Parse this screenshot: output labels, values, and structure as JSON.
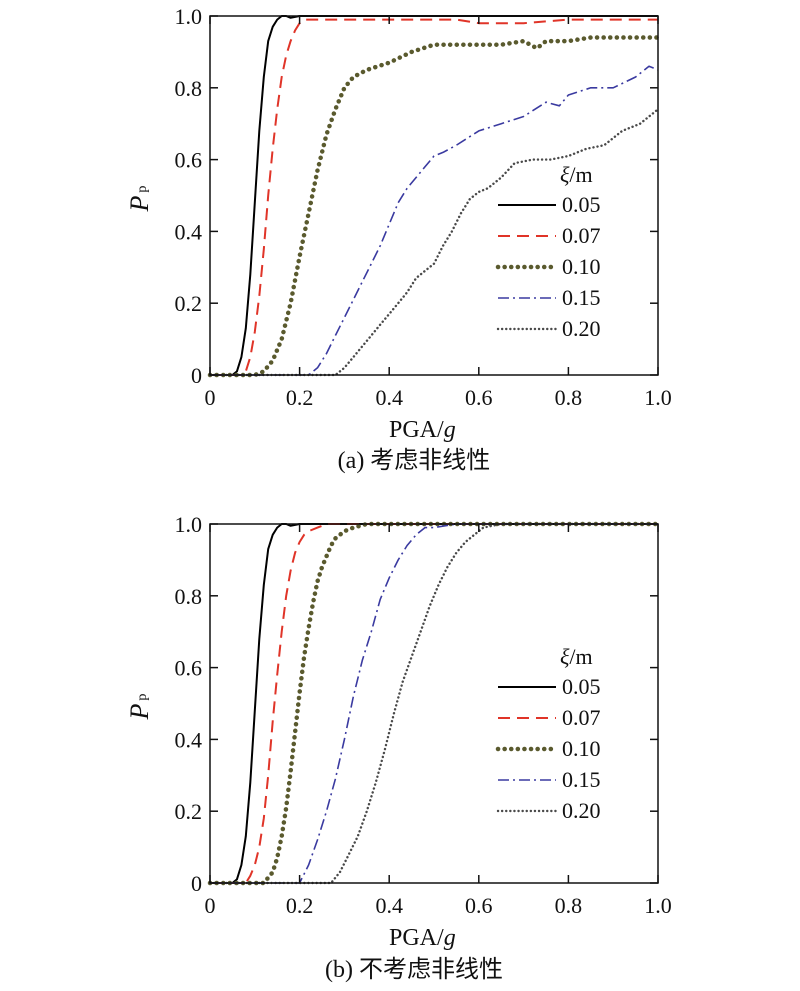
{
  "chart_data": [
    {
      "type": "line",
      "caption": "(a) 考虑非线性",
      "xlabel": "PGA/g",
      "ylabel": "Pp",
      "xlim": [
        0,
        1.0
      ],
      "ylim": [
        0,
        1.0
      ],
      "xticks": [
        "0",
        "0.2",
        "0.4",
        "0.6",
        "0.8",
        "1.0"
      ],
      "yticks": [
        "0",
        "0.2",
        "0.4",
        "0.6",
        "0.8",
        "1.0"
      ],
      "legend_title": "ξ/m",
      "legend_position": "right-middle",
      "grid": false,
      "series": [
        {
          "name": "0.05",
          "color": "#000000",
          "dash": "solid",
          "x": [
            0,
            0.05,
            0.06,
            0.07,
            0.08,
            0.09,
            0.1,
            0.11,
            0.12,
            0.13,
            0.14,
            0.15,
            0.16,
            0.17,
            0.18,
            0.2,
            0.25,
            0.4,
            0.55,
            0.7,
            0.85,
            1.0
          ],
          "y": [
            0,
            0,
            0.01,
            0.05,
            0.13,
            0.28,
            0.48,
            0.68,
            0.83,
            0.93,
            0.97,
            0.99,
            1.0,
            1.0,
            0.995,
            1.0,
            1.0,
            1.0,
            1.0,
            1.0,
            1.0,
            1.0
          ]
        },
        {
          "name": "0.07",
          "color": "#e03428",
          "dash": "long-dash",
          "x": [
            0,
            0.07,
            0.08,
            0.09,
            0.1,
            0.11,
            0.12,
            0.13,
            0.14,
            0.15,
            0.16,
            0.17,
            0.18,
            0.19,
            0.2,
            0.21,
            0.22,
            0.25,
            0.4,
            0.55,
            0.6,
            0.7,
            0.8,
            0.9,
            1.0
          ],
          "y": [
            0,
            0,
            0.01,
            0.05,
            0.12,
            0.22,
            0.35,
            0.5,
            0.63,
            0.74,
            0.83,
            0.89,
            0.93,
            0.96,
            0.98,
            0.99,
            0.99,
            0.99,
            0.99,
            0.99,
            0.98,
            0.98,
            0.99,
            0.99,
            0.99
          ]
        },
        {
          "name": "0.10",
          "color": "#5a5a2e",
          "dash": "dotted-thick",
          "x": [
            0,
            0.1,
            0.12,
            0.14,
            0.16,
            0.18,
            0.2,
            0.22,
            0.24,
            0.26,
            0.28,
            0.3,
            0.32,
            0.35,
            0.4,
            0.45,
            0.5,
            0.55,
            0.6,
            0.65,
            0.7,
            0.73,
            0.75,
            0.78,
            0.8,
            0.85,
            0.9,
            1.0
          ],
          "y": [
            0,
            0,
            0.01,
            0.04,
            0.1,
            0.2,
            0.33,
            0.45,
            0.57,
            0.67,
            0.74,
            0.8,
            0.83,
            0.85,
            0.87,
            0.9,
            0.92,
            0.92,
            0.92,
            0.92,
            0.93,
            0.91,
            0.93,
            0.93,
            0.93,
            0.94,
            0.94,
            0.94
          ]
        },
        {
          "name": "0.15",
          "color": "#3a3aa0",
          "dash": "dash-dot",
          "x": [
            0,
            0.22,
            0.24,
            0.26,
            0.28,
            0.3,
            0.32,
            0.34,
            0.36,
            0.38,
            0.4,
            0.42,
            0.44,
            0.46,
            0.48,
            0.5,
            0.52,
            0.55,
            0.6,
            0.65,
            0.7,
            0.75,
            0.78,
            0.8,
            0.85,
            0.9,
            0.95,
            0.98,
            1.0
          ],
          "y": [
            0,
            0,
            0.02,
            0.06,
            0.11,
            0.16,
            0.21,
            0.26,
            0.31,
            0.36,
            0.42,
            0.48,
            0.52,
            0.55,
            0.58,
            0.61,
            0.62,
            0.64,
            0.68,
            0.7,
            0.72,
            0.76,
            0.75,
            0.78,
            0.8,
            0.8,
            0.83,
            0.86,
            0.85
          ]
        },
        {
          "name": "0.20",
          "color": "#4a4a4a",
          "dash": "dotted-fine",
          "x": [
            0,
            0.28,
            0.3,
            0.32,
            0.34,
            0.36,
            0.38,
            0.4,
            0.42,
            0.44,
            0.46,
            0.48,
            0.5,
            0.52,
            0.54,
            0.56,
            0.58,
            0.6,
            0.62,
            0.65,
            0.68,
            0.72,
            0.76,
            0.8,
            0.84,
            0.88,
            0.92,
            0.96,
            1.0
          ],
          "y": [
            0,
            0,
            0.02,
            0.05,
            0.08,
            0.11,
            0.14,
            0.17,
            0.2,
            0.23,
            0.27,
            0.29,
            0.31,
            0.36,
            0.4,
            0.45,
            0.49,
            0.51,
            0.52,
            0.55,
            0.59,
            0.6,
            0.6,
            0.61,
            0.63,
            0.64,
            0.68,
            0.7,
            0.74
          ]
        }
      ]
    },
    {
      "type": "line",
      "caption": "(b) 不考虑非线性",
      "xlabel": "PGA/g",
      "ylabel": "Pp",
      "xlim": [
        0,
        1.0
      ],
      "ylim": [
        0,
        1.0
      ],
      "xticks": [
        "0",
        "0.2",
        "0.4",
        "0.6",
        "0.8",
        "1.0"
      ],
      "yticks": [
        "0",
        "0.2",
        "0.4",
        "0.6",
        "0.8",
        "1.0"
      ],
      "legend_title": "ξ/m",
      "legend_position": "right-middle",
      "grid": false,
      "series": [
        {
          "name": "0.05",
          "color": "#000000",
          "dash": "solid",
          "x": [
            0,
            0.05,
            0.06,
            0.07,
            0.08,
            0.09,
            0.1,
            0.11,
            0.12,
            0.13,
            0.14,
            0.15,
            0.16,
            0.17,
            0.18,
            0.2,
            0.4,
            0.6,
            0.8,
            1.0
          ],
          "y": [
            0,
            0,
            0.01,
            0.05,
            0.13,
            0.28,
            0.48,
            0.68,
            0.83,
            0.93,
            0.97,
            0.99,
            1.0,
            1.0,
            0.995,
            1.0,
            1.0,
            1.0,
            1.0,
            1.0
          ]
        },
        {
          "name": "0.07",
          "color": "#e03428",
          "dash": "long-dash",
          "x": [
            0,
            0.08,
            0.09,
            0.1,
            0.11,
            0.12,
            0.13,
            0.14,
            0.15,
            0.16,
            0.17,
            0.18,
            0.19,
            0.2,
            0.21,
            0.22,
            0.24,
            0.26,
            0.3,
            0.4,
            0.6,
            0.8,
            1.0
          ],
          "y": [
            0,
            0,
            0.02,
            0.05,
            0.1,
            0.18,
            0.3,
            0.45,
            0.58,
            0.7,
            0.8,
            0.87,
            0.92,
            0.95,
            0.97,
            0.98,
            0.99,
            1.0,
            1.0,
            1.0,
            1.0,
            1.0,
            1.0
          ]
        },
        {
          "name": "0.10",
          "color": "#5a5a2e",
          "dash": "dotted-thick",
          "x": [
            0,
            0.12,
            0.14,
            0.15,
            0.16,
            0.17,
            0.18,
            0.19,
            0.2,
            0.21,
            0.22,
            0.23,
            0.24,
            0.25,
            0.26,
            0.27,
            0.28,
            0.3,
            0.32,
            0.35,
            0.4,
            0.6,
            0.8,
            1.0
          ],
          "y": [
            0,
            0,
            0.03,
            0.07,
            0.13,
            0.21,
            0.31,
            0.42,
            0.53,
            0.63,
            0.71,
            0.78,
            0.84,
            0.88,
            0.91,
            0.94,
            0.96,
            0.98,
            0.99,
            1.0,
            1.0,
            1.0,
            1.0,
            1.0
          ]
        },
        {
          "name": "0.15",
          "color": "#3a3aa0",
          "dash": "dash-dot",
          "x": [
            0,
            0.2,
            0.22,
            0.24,
            0.26,
            0.28,
            0.3,
            0.32,
            0.34,
            0.36,
            0.38,
            0.4,
            0.42,
            0.44,
            0.46,
            0.48,
            0.5,
            0.55,
            0.6,
            0.8,
            1.0
          ],
          "y": [
            0,
            0,
            0.05,
            0.12,
            0.2,
            0.29,
            0.4,
            0.52,
            0.62,
            0.7,
            0.79,
            0.85,
            0.9,
            0.94,
            0.97,
            0.99,
            0.99,
            1.0,
            1.0,
            1.0,
            1.0
          ]
        },
        {
          "name": "0.20",
          "color": "#4a4a4a",
          "dash": "dotted-fine",
          "x": [
            0,
            0.27,
            0.29,
            0.31,
            0.33,
            0.35,
            0.37,
            0.39,
            0.41,
            0.43,
            0.45,
            0.47,
            0.49,
            0.51,
            0.53,
            0.55,
            0.57,
            0.59,
            0.61,
            0.65,
            0.8,
            1.0
          ],
          "y": [
            0,
            0,
            0.03,
            0.08,
            0.13,
            0.2,
            0.28,
            0.37,
            0.47,
            0.56,
            0.63,
            0.7,
            0.77,
            0.83,
            0.88,
            0.92,
            0.95,
            0.97,
            0.99,
            1.0,
            1.0,
            1.0
          ]
        }
      ]
    }
  ]
}
